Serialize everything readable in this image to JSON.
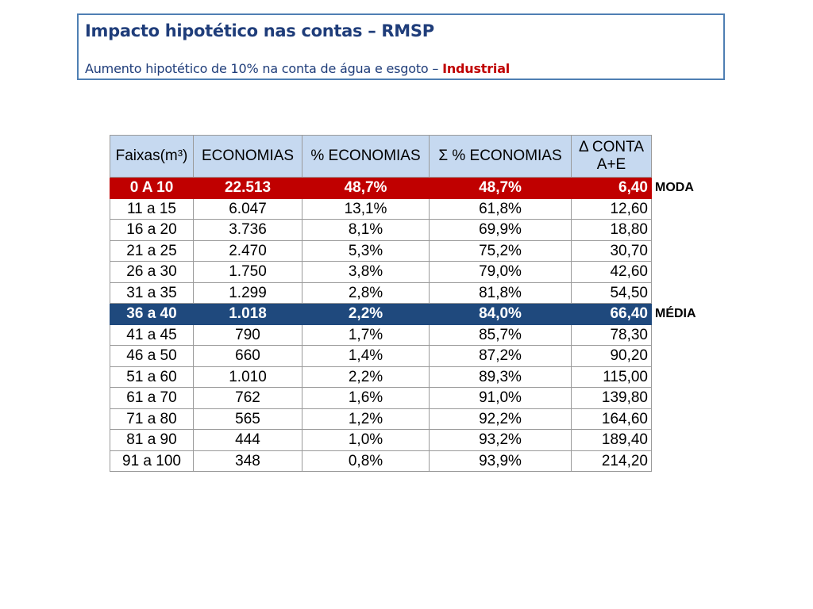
{
  "header": {
    "title": "Impacto hipotético nas contas – RMSP",
    "subtitle_prefix": "Aumento hipotético de 10% na conta de água e esgoto – ",
    "subtitle_highlight": "Industrial"
  },
  "table": {
    "columns": [
      "Faixas(m³)",
      "ECONOMIAS",
      "% ECONOMIAS",
      "Σ % ECONOMIAS",
      "Δ CONTA A+E"
    ],
    "column_header_5_line1": "Δ CONTA",
    "column_header_5_line2": "A+E",
    "rows": [
      {
        "faixa": "0 A 10",
        "economias": "22.513",
        "pct": "48,7%",
        "sum_pct": "48,7%",
        "delta": "6,40",
        "marker": "MODA",
        "style": "moda"
      },
      {
        "faixa": "11 a 15",
        "economias": "6.047",
        "pct": "13,1%",
        "sum_pct": "61,8%",
        "delta": "12,60",
        "marker": "",
        "style": ""
      },
      {
        "faixa": "16 a 20",
        "economias": "3.736",
        "pct": "8,1%",
        "sum_pct": "69,9%",
        "delta": "18,80",
        "marker": "",
        "style": ""
      },
      {
        "faixa": "21 a 25",
        "economias": "2.470",
        "pct": "5,3%",
        "sum_pct": "75,2%",
        "delta": "30,70",
        "marker": "",
        "style": ""
      },
      {
        "faixa": "26 a 30",
        "economias": "1.750",
        "pct": "3,8%",
        "sum_pct": "79,0%",
        "delta": "42,60",
        "marker": "",
        "style": ""
      },
      {
        "faixa": "31 a 35",
        "economias": "1.299",
        "pct": "2,8%",
        "sum_pct": "81,8%",
        "delta": "54,50",
        "marker": "",
        "style": ""
      },
      {
        "faixa": "36 a 40",
        "economias": "1.018",
        "pct": "2,2%",
        "sum_pct": "84,0%",
        "delta": "66,40",
        "marker": "MÉDIA",
        "style": "media"
      },
      {
        "faixa": "41 a 45",
        "economias": "790",
        "pct": "1,7%",
        "sum_pct": "85,7%",
        "delta": "78,30",
        "marker": "",
        "style": ""
      },
      {
        "faixa": "46 a 50",
        "economias": "660",
        "pct": "1,4%",
        "sum_pct": "87,2%",
        "delta": "90,20",
        "marker": "",
        "style": ""
      },
      {
        "faixa": "51 a 60",
        "economias": "1.010",
        "pct": "2,2%",
        "sum_pct": "89,3%",
        "delta": "115,00",
        "marker": "",
        "style": ""
      },
      {
        "faixa": "61 a 70",
        "economias": "762",
        "pct": "1,6%",
        "sum_pct": "91,0%",
        "delta": "139,80",
        "marker": "",
        "style": ""
      },
      {
        "faixa": "71 a 80",
        "economias": "565",
        "pct": "1,2%",
        "sum_pct": "92,2%",
        "delta": "164,60",
        "marker": "",
        "style": ""
      },
      {
        "faixa": "81 a 90",
        "economias": "444",
        "pct": "1,0%",
        "sum_pct": "93,2%",
        "delta": "189,40",
        "marker": "",
        "style": ""
      },
      {
        "faixa": "91 a 100",
        "economias": "348",
        "pct": "0,8%",
        "sum_pct": "93,9%",
        "delta": "214,20",
        "marker": "",
        "style": ""
      }
    ]
  },
  "colors": {
    "title": "#1f3d7a",
    "border": "#4f7fb3",
    "header_bg": "#c6d9f0",
    "moda_bg": "#c00000",
    "media_bg": "#1f497d",
    "highlight_text": "#c00000"
  }
}
